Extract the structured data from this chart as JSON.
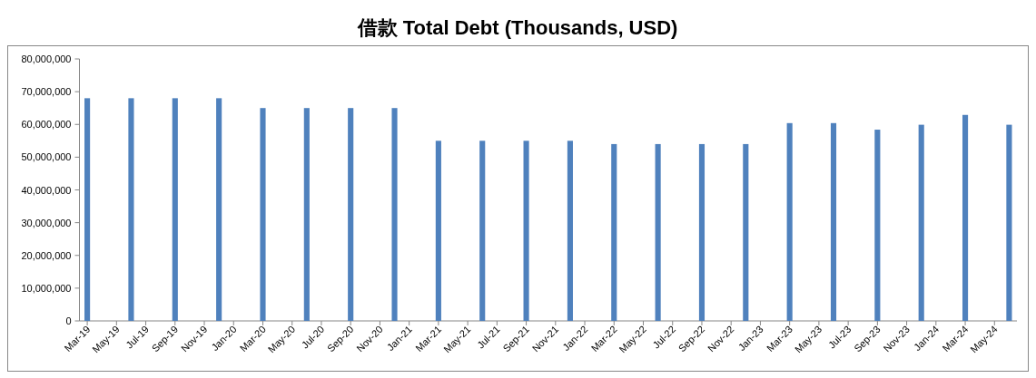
{
  "chart_data": {
    "type": "bar",
    "title": "借款 Total Debt (Thousands, USD)",
    "x": [
      "2019-03",
      "2019-06",
      "2019-09",
      "2019-12",
      "2020-03",
      "2020-06",
      "2020-09",
      "2020-12",
      "2021-03",
      "2021-06",
      "2021-09",
      "2021-12",
      "2022-03",
      "2022-06",
      "2022-09",
      "2022-12",
      "2023-03",
      "2023-06",
      "2023-09",
      "2023-12",
      "2024-03",
      "2024-06"
    ],
    "values": [
      68000000,
      68000000,
      68000000,
      68000000,
      65000000,
      65000000,
      65000000,
      65000000,
      55000000,
      55000000,
      55000000,
      55000000,
      54000000,
      54000000,
      54000000,
      54000000,
      60400000,
      60400000,
      58400000,
      59900000,
      62900000,
      59900000
    ],
    "color": "#4f81bd",
    "xlim": [
      "2019-02-15",
      "2024-06-17"
    ],
    "ylim": [
      0,
      80000000
    ],
    "xticks": [
      {
        "value": "2019-03",
        "label": "Mar-19"
      },
      {
        "value": "2019-05",
        "label": "May-19"
      },
      {
        "value": "2019-07",
        "label": "Jul-19"
      },
      {
        "value": "2019-09",
        "label": "Sep-19"
      },
      {
        "value": "2019-11",
        "label": "Nov-19"
      },
      {
        "value": "2020-01",
        "label": "Jan-20"
      },
      {
        "value": "2020-03",
        "label": "Mar-20"
      },
      {
        "value": "2020-05",
        "label": "May-20"
      },
      {
        "value": "2020-07",
        "label": "Jul-20"
      },
      {
        "value": "2020-09",
        "label": "Sep-20"
      },
      {
        "value": "2020-11",
        "label": "Nov-20"
      },
      {
        "value": "2021-01",
        "label": "Jan-21"
      },
      {
        "value": "2021-03",
        "label": "Mar-21"
      },
      {
        "value": "2021-05",
        "label": "May-21"
      },
      {
        "value": "2021-07",
        "label": "Jul-21"
      },
      {
        "value": "2021-09",
        "label": "Sep-21"
      },
      {
        "value": "2021-11",
        "label": "Nov-21"
      },
      {
        "value": "2022-01",
        "label": "Jan-22"
      },
      {
        "value": "2022-03",
        "label": "Mar-22"
      },
      {
        "value": "2022-05",
        "label": "May-22"
      },
      {
        "value": "2022-07",
        "label": "Jul-22"
      },
      {
        "value": "2022-09",
        "label": "Sep-22"
      },
      {
        "value": "2022-11",
        "label": "Nov-22"
      },
      {
        "value": "2023-01",
        "label": "Jan-23"
      },
      {
        "value": "2023-03",
        "label": "Mar-23"
      },
      {
        "value": "2023-05",
        "label": "May-23"
      },
      {
        "value": "2023-07",
        "label": "Jul-23"
      },
      {
        "value": "2023-09",
        "label": "Sep-23"
      },
      {
        "value": "2023-11",
        "label": "Nov-23"
      },
      {
        "value": "2024-01",
        "label": "Jan-24"
      },
      {
        "value": "2024-03",
        "label": "Mar-24"
      },
      {
        "value": "2024-05",
        "label": "May-24"
      }
    ],
    "yticks": [
      0,
      {
        "value": 10000000,
        "label": "10,000,000"
      },
      {
        "value": 20000000,
        "label": "20,000,000"
      },
      {
        "value": 30000000,
        "label": "30,000,000"
      },
      {
        "value": 40000000,
        "label": "40,000,000"
      },
      {
        "value": 50000000,
        "label": "50,000,000"
      },
      {
        "value": 60000000,
        "label": "60,000,000"
      },
      {
        "value": 70000000,
        "label": "70,000,000"
      },
      {
        "value": 80000000,
        "label": "80,000,000"
      }
    ]
  }
}
